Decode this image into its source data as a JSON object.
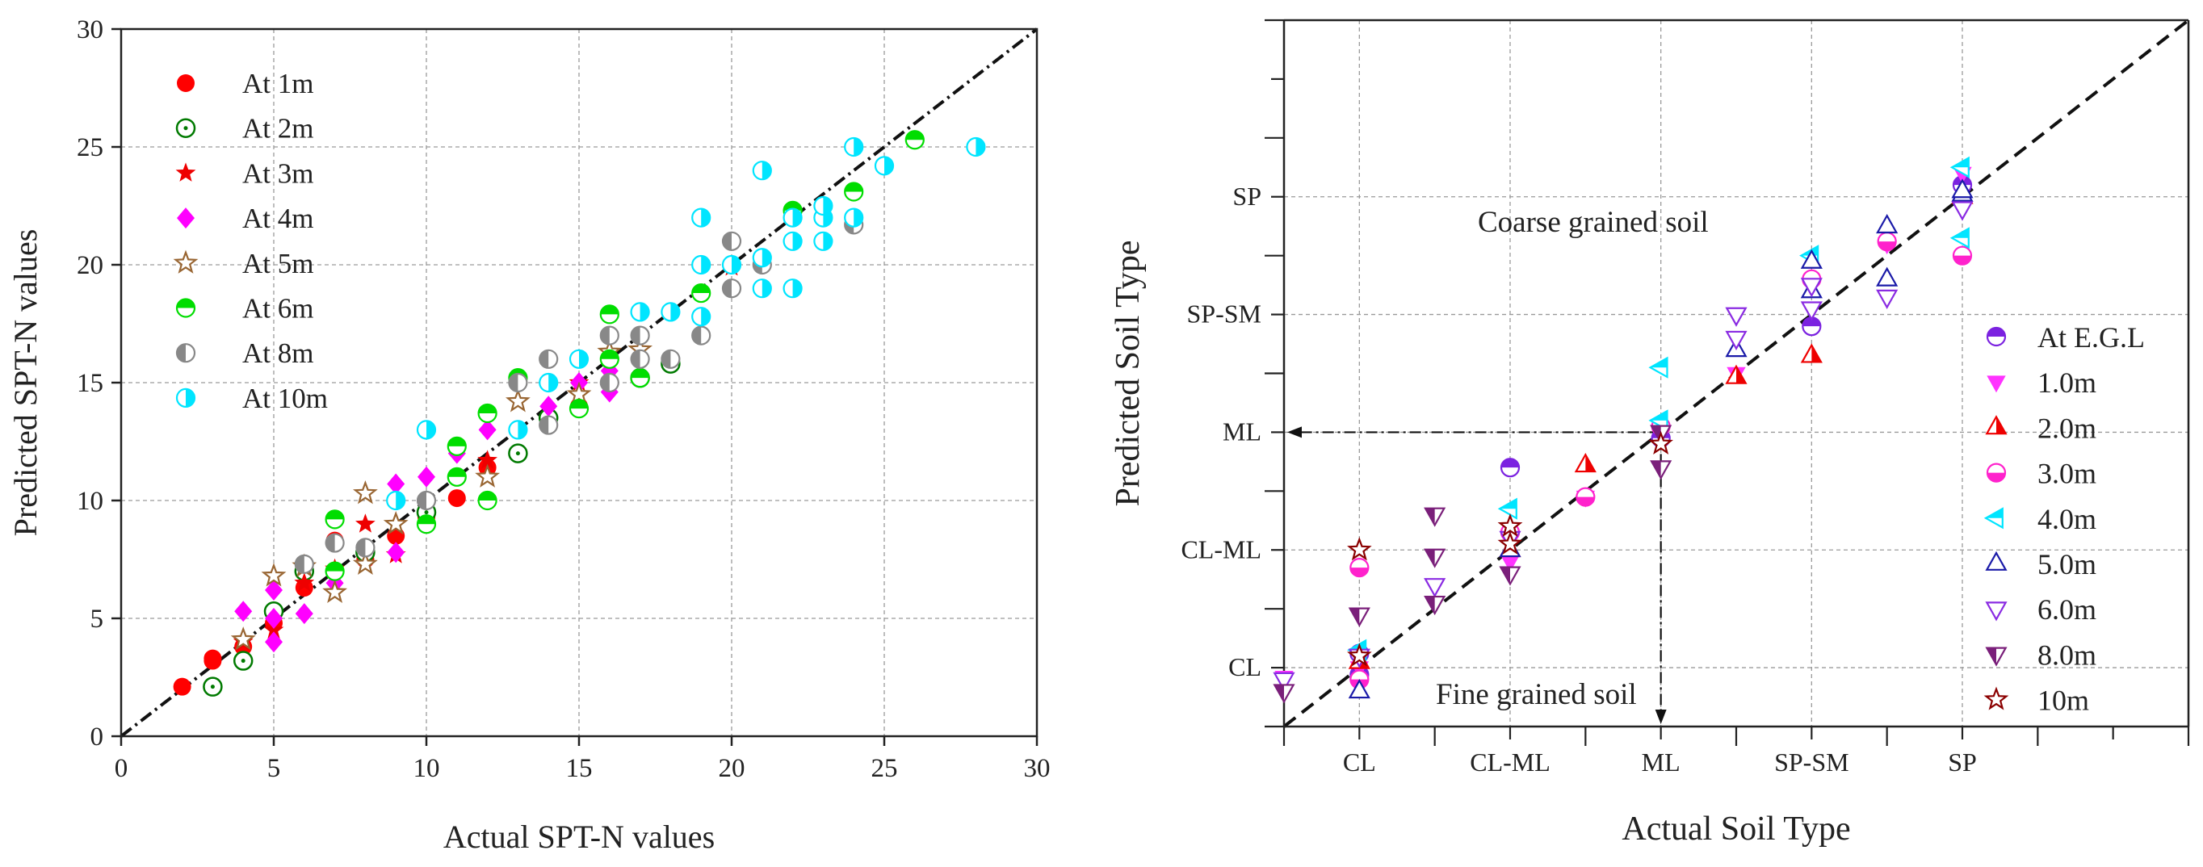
{
  "chart_data": [
    {
      "type": "scatter",
      "xlabel": "Actual SPT-N values",
      "ylabel": "Predicted SPT-N values",
      "xlim": [
        0,
        30
      ],
      "ylim": [
        0,
        30
      ],
      "xticks": [
        "0",
        "5",
        "10",
        "15",
        "20",
        "25",
        "30"
      ],
      "yticks": [
        "0",
        "5",
        "10",
        "15",
        "20",
        "25",
        "30"
      ],
      "grid": true,
      "legend_position": "top-left",
      "reference_line": {
        "style": "dash-dot",
        "from": [
          0,
          0
        ],
        "to": [
          30,
          30
        ]
      },
      "series": [
        {
          "name": "At 1m",
          "color": "#ff0000",
          "marker": "circle-filled",
          "points": [
            [
              2,
              2.1
            ],
            [
              3,
              3.2
            ],
            [
              3,
              3.3
            ],
            [
              4,
              3.8
            ],
            [
              5,
              4.8
            ],
            [
              6,
              6.3
            ],
            [
              7,
              8.3
            ],
            [
              8,
              7.5
            ],
            [
              9,
              8.5
            ],
            [
              10,
              9.3
            ],
            [
              11,
              10.1
            ],
            [
              12,
              11.4
            ],
            [
              15,
              14.0
            ]
          ]
        },
        {
          "name": "At 2m",
          "color": "#007a00",
          "marker": "circle-dot",
          "points": [
            [
              3,
              2.1
            ],
            [
              4,
              3.2
            ],
            [
              5,
              5.3
            ],
            [
              6,
              7.0
            ],
            [
              8,
              7.8
            ],
            [
              10,
              9.5
            ],
            [
              13,
              12.0
            ],
            [
              14,
              13.5
            ],
            [
              17,
              15.2
            ],
            [
              18,
              15.8
            ]
          ]
        },
        {
          "name": "At 3m",
          "color": "#ee0000",
          "marker": "star-filled",
          "points": [
            [
              4,
              4.0
            ],
            [
              5,
              4.5
            ],
            [
              6,
              6.5
            ],
            [
              7,
              7.1
            ],
            [
              8,
              9.0
            ],
            [
              9,
              7.7
            ],
            [
              12,
              11.7
            ],
            [
              15,
              15.0
            ],
            [
              20,
              19.9
            ]
          ]
        },
        {
          "name": "At 4m",
          "color": "#ff00ff",
          "marker": "diamond",
          "points": [
            [
              4,
              5.3
            ],
            [
              5,
              4.0
            ],
            [
              5,
              5.0
            ],
            [
              5,
              6.2
            ],
            [
              6,
              5.2
            ],
            [
              7,
              6.5
            ],
            [
              9,
              7.8
            ],
            [
              9,
              10.7
            ],
            [
              10,
              11.0
            ],
            [
              11,
              12.0
            ],
            [
              12,
              13.0
            ],
            [
              14,
              14.0
            ],
            [
              15,
              15.0
            ],
            [
              16,
              14.6
            ],
            [
              16,
              15.5
            ]
          ]
        },
        {
          "name": "At 5m",
          "color": "#996633",
          "marker": "star-open",
          "points": [
            [
              4,
              4.1
            ],
            [
              5,
              6.8
            ],
            [
              6,
              7.2
            ],
            [
              7,
              6.1
            ],
            [
              8,
              7.3
            ],
            [
              8,
              10.3
            ],
            [
              9,
              9.0
            ],
            [
              12,
              11.0
            ],
            [
              13,
              14.2
            ],
            [
              15,
              14.5
            ],
            [
              16,
              16.3
            ],
            [
              17,
              16.4
            ]
          ]
        },
        {
          "name": "At 6m",
          "color": "#00dd00",
          "marker": "half-top",
          "points": [
            [
              7,
              7.0
            ],
            [
              7,
              9.2
            ],
            [
              10,
              9.0
            ],
            [
              11,
              11.0
            ],
            [
              11,
              12.3
            ],
            [
              12,
              10.0
            ],
            [
              12,
              13.7
            ],
            [
              13,
              15.2
            ],
            [
              15,
              13.9
            ],
            [
              16,
              16.0
            ],
            [
              16,
              17.9
            ],
            [
              17,
              15.2
            ],
            [
              19,
              18.8
            ],
            [
              22,
              22.3
            ],
            [
              24,
              23.1
            ],
            [
              26,
              25.3
            ]
          ]
        },
        {
          "name": "At 8m",
          "color": "#888888",
          "marker": "half-left",
          "points": [
            [
              6,
              7.3
            ],
            [
              7,
              8.2
            ],
            [
              8,
              8.0
            ],
            [
              10,
              10.0
            ],
            [
              13,
              15.0
            ],
            [
              14,
              13.2
            ],
            [
              14,
              16.0
            ],
            [
              16,
              15.0
            ],
            [
              16,
              17.0
            ],
            [
              17,
              16.0
            ],
            [
              17,
              17.0
            ],
            [
              18,
              16.0
            ],
            [
              19,
              17.0
            ],
            [
              20,
              19.0
            ],
            [
              20,
              21.0
            ],
            [
              21,
              20.0
            ],
            [
              24,
              21.7
            ]
          ]
        },
        {
          "name": "At 10m",
          "color": "#00e5ff",
          "marker": "half-right",
          "points": [
            [
              9,
              10.0
            ],
            [
              10,
              13.0
            ],
            [
              13,
              13.0
            ],
            [
              14,
              15.0
            ],
            [
              15,
              16.0
            ],
            [
              17,
              18.0
            ],
            [
              18,
              18.0
            ],
            [
              19,
              17.8
            ],
            [
              19,
              20.0
            ],
            [
              19,
              22.0
            ],
            [
              20,
              20.0
            ],
            [
              21,
              19.0
            ],
            [
              21,
              20.3
            ],
            [
              21,
              24.0
            ],
            [
              22,
              19.0
            ],
            [
              22,
              21.0
            ],
            [
              22,
              22.0
            ],
            [
              23,
              21.0
            ],
            [
              23,
              22.0
            ],
            [
              23,
              22.5
            ],
            [
              24,
              22.0
            ],
            [
              24,
              25.0
            ],
            [
              25,
              24.2
            ],
            [
              28,
              25.0
            ]
          ]
        }
      ]
    },
    {
      "type": "scatter",
      "xlabel": "Actual Soil Type",
      "ylabel": "Predicted Soil Type",
      "categories": [
        "CL",
        "CL-ML",
        "ML",
        "SP-SM",
        "SP"
      ],
      "xlim": [
        -0.5,
        5.5
      ],
      "ylim": [
        -0.5,
        5.5
      ],
      "grid": true,
      "legend_position": "bottom-right",
      "reference_line": {
        "style": "dashed",
        "from": [
          -0.5,
          -0.5
        ],
        "to": [
          5.5,
          5.5
        ]
      },
      "annotations": {
        "coarse": "Coarse grained soil",
        "fine": "Fine grained soil",
        "arrow": {
          "x": 2.0,
          "y": 2.0
        }
      },
      "series": [
        {
          "name": "At E.G.L",
          "color": "#7b22e0",
          "marker": "half-top",
          "points": [
            [
              0,
              0.12
            ],
            [
              0,
              -0.06
            ],
            [
              1,
              1.7
            ],
            [
              2,
              1.95
            ],
            [
              3,
              2.9
            ],
            [
              4,
              4.1
            ]
          ]
        },
        {
          "name": "1.0m",
          "color": "#ff33ff",
          "marker": "tri-down-filled",
          "points": [
            [
              -0.5,
              -0.08
            ],
            [
              0,
              0.0
            ],
            [
              1,
              0.9
            ],
            [
              1.5,
              1.45
            ],
            [
              2,
              1.7
            ],
            [
              2.5,
              2.5
            ],
            [
              3,
              3.25
            ],
            [
              3.5,
              3.6
            ],
            [
              4,
              4.2
            ]
          ]
        },
        {
          "name": "2.0m",
          "color": "#ee0000",
          "marker": "tri-up-half",
          "points": [
            [
              0,
              0.05
            ],
            [
              1,
              1.0
            ],
            [
              1.5,
              1.72
            ],
            [
              2.5,
              2.47
            ],
            [
              3,
              2.65
            ],
            [
              4,
              4.0
            ]
          ]
        },
        {
          "name": "3.0m",
          "color": "#ff22cc",
          "marker": "circle-half-bottom",
          "points": [
            [
              0,
              -0.1
            ],
            [
              0,
              0.85
            ],
            [
              1,
              1.15
            ],
            [
              1.5,
              1.45
            ],
            [
              2,
              2.05
            ],
            [
              3,
              3.3
            ],
            [
              3.5,
              3.62
            ],
            [
              4,
              3.5
            ]
          ]
        },
        {
          "name": "4.0m",
          "color": "#00e5ff",
          "marker": "tri-left",
          "points": [
            [
              0,
              0.15
            ],
            [
              1,
              1.35
            ],
            [
              2,
              2.1
            ],
            [
              2,
              2.55
            ],
            [
              3,
              3.5
            ],
            [
              4,
              3.65
            ],
            [
              4,
              4.25
            ]
          ]
        },
        {
          "name": "5.0m",
          "color": "#1a1aa8",
          "marker": "tri-up-open",
          "points": [
            [
              0,
              -0.2
            ],
            [
              1,
              1.0
            ],
            [
              2.5,
              2.7
            ],
            [
              3,
              3.2
            ],
            [
              3,
              3.45
            ],
            [
              3.5,
              3.3
            ],
            [
              3.5,
              3.75
            ],
            [
              4,
              4.02
            ],
            [
              4,
              4.05
            ]
          ]
        },
        {
          "name": "6.0m",
          "color": "#8a2be2",
          "marker": "tri-down-open",
          "points": [
            [
              -0.5,
              -0.1
            ],
            [
              0,
              0.1
            ],
            [
              0.5,
              0.7
            ],
            [
              1,
              1.1
            ],
            [
              2.5,
              2.8
            ],
            [
              2.5,
              3.0
            ],
            [
              3,
              3.05
            ],
            [
              3,
              3.25
            ],
            [
              3.5,
              3.15
            ],
            [
              4,
              3.9
            ]
          ]
        },
        {
          "name": "8.0m",
          "color": "#7a1f7a",
          "marker": "tri-down-half",
          "points": [
            [
              -0.5,
              -0.2
            ],
            [
              0,
              0.45
            ],
            [
              0.5,
              0.55
            ],
            [
              0.5,
              0.95
            ],
            [
              0.5,
              1.3
            ],
            [
              1,
              0.8
            ],
            [
              2,
              1.7
            ],
            [
              2,
              2.0
            ]
          ]
        },
        {
          "name": "10m",
          "color": "#8b0000",
          "marker": "star-open",
          "points": [
            [
              0,
              0.1
            ],
            [
              0,
              1.0
            ],
            [
              1,
              1.05
            ],
            [
              1,
              1.2
            ],
            [
              2,
              1.9
            ]
          ]
        }
      ]
    }
  ]
}
